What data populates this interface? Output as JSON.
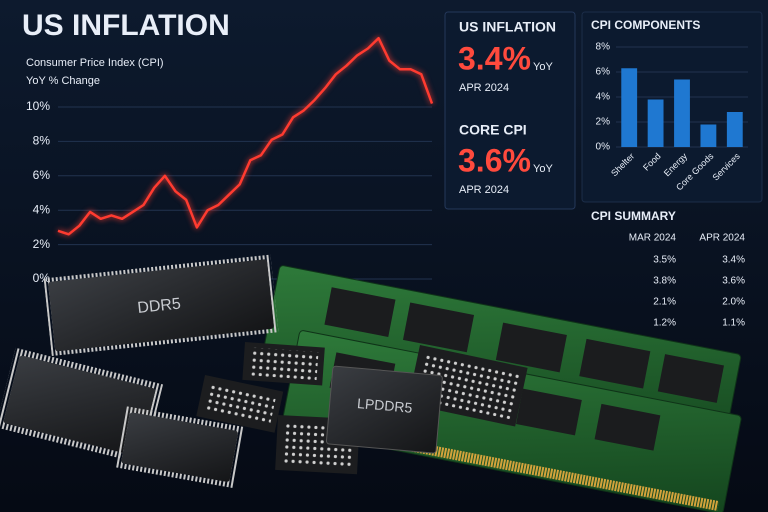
{
  "title": "US INFLATION",
  "line_chart": {
    "type": "line",
    "subtitle": "Consumer Price Index (CPI)",
    "y_label": "YoY % Change",
    "values": [
      2.8,
      2.6,
      3.1,
      3.9,
      3.5,
      3.7,
      3.5,
      3.9,
      4.3,
      5.3,
      6.0,
      5.1,
      4.6,
      3.0,
      4.0,
      4.3,
      4.9,
      5.5,
      6.9,
      7.2,
      8.1,
      8.4,
      9.4,
      9.8,
      10.4,
      11.1,
      11.9,
      12.4,
      13.0,
      13.4,
      14.0,
      12.7,
      12.2,
      12.2,
      11.9,
      10.2
    ],
    "color": "#ff3b30",
    "ylim": [
      0,
      14.5
    ],
    "yticks": [
      {
        "value": 0,
        "label": "0%"
      },
      {
        "value": 2,
        "label": "2%"
      },
      {
        "value": 4,
        "label": "4%"
      },
      {
        "value": 6,
        "label": "6%"
      },
      {
        "value": 8,
        "label": "8%"
      },
      {
        "value": 10,
        "label": "10%"
      }
    ],
    "grid": true
  },
  "kpis": [
    {
      "label": "US INFLATION",
      "value": "3.4%",
      "unit": "YoY",
      "date": "APR 2024"
    },
    {
      "label": "CORE CPI",
      "value": "3.6%",
      "unit": "YoY",
      "date": "APR 2024"
    }
  ],
  "bar_chart": {
    "type": "bar",
    "title": "CPI COMPONENTS",
    "categories": [
      "Shelter",
      "Food",
      "Energy",
      "Core Goods",
      "Services"
    ],
    "values": [
      6.3,
      3.8,
      5.4,
      1.8,
      2.8
    ],
    "color": "#1f78d1",
    "ylim": [
      0,
      8
    ],
    "yticks": [
      {
        "value": 0,
        "label": "0%"
      },
      {
        "value": 2,
        "label": "2%"
      },
      {
        "value": 4,
        "label": "4%"
      },
      {
        "value": 6,
        "label": "6%"
      },
      {
        "value": 8,
        "label": "8%"
      }
    ],
    "grid": true
  },
  "summary": {
    "title": "CPI SUMMARY",
    "columns": [
      "MAR 2024",
      "APR 2024"
    ],
    "rows": [
      [
        "3.5%",
        "3.4%"
      ],
      [
        "3.8%",
        "3.6%"
      ],
      [
        "2.1%",
        "2.0%"
      ],
      [
        "1.2%",
        "1.1%"
      ]
    ]
  },
  "chips": [
    "DDR5",
    "LPDDR5"
  ]
}
